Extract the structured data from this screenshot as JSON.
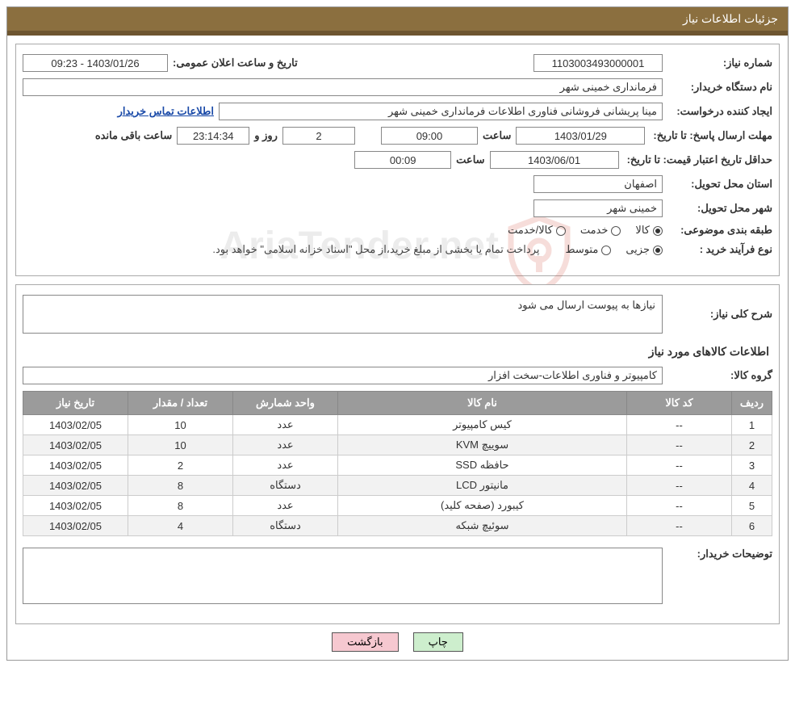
{
  "title_bar": "جزئیات اطلاعات نیاز",
  "watermark_text": "AriaTender.net",
  "section1": {
    "need_number_label": "شماره نیاز:",
    "need_number": "1103003493000001",
    "announce_label": "تاریخ و ساعت اعلان عمومی:",
    "announce_value": "1403/01/26 - 09:23",
    "buyer_org_label": "نام دستگاه خریدار:",
    "buyer_org": "فرمانداری خمینی شهر",
    "requester_label": "ایجاد کننده درخواست:",
    "requester": "مینا پریشانی فروشانی فناوری اطلاعات فرمانداری خمینی شهر",
    "buyer_contact_link": "اطلاعات تماس خریدار",
    "deadline_label": "مهلت ارسال پاسخ: تا تاریخ:",
    "deadline_date": "1403/01/29",
    "time_label": "ساعت",
    "deadline_time": "09:00",
    "days_remaining": "2",
    "day_and_label": "روز و",
    "countdown": "23:14:34",
    "remaining_label": "ساعت باقی مانده",
    "min_validity_label": "حداقل تاریخ اعتبار قیمت: تا تاریخ:",
    "min_validity_date": "1403/06/01",
    "min_validity_time": "00:09",
    "delivery_province_label": "استان محل تحویل:",
    "delivery_province": "اصفهان",
    "delivery_city_label": "شهر محل تحویل:",
    "delivery_city": "خمینی شهر",
    "subject_class_label": "طبقه بندی موضوعی:",
    "subject_goods": "کالا",
    "subject_service": "خدمت",
    "subject_goods_service": "کالا/خدمت",
    "purchase_type_label": "نوع فرآیند خرید :",
    "purchase_partial": "جزیی",
    "purchase_medium": "متوسط",
    "purchase_note": "پرداخت تمام یا بخشی از مبلغ خرید،از محل \"اسناد خزانه اسلامی\" خواهد بود."
  },
  "section2": {
    "general_desc_label": "شرح کلی نیاز:",
    "general_desc": "نیازها به پیوست ارسال می شود",
    "items_heading": "اطلاعات کالاهای مورد نیاز",
    "goods_group_label": "گروه کالا:",
    "goods_group": "کامپیوتر و فناوری اطلاعات-سخت افزار",
    "buyer_notes_label": "توضیحات خریدار:",
    "buyer_notes": ""
  },
  "table": {
    "headers": {
      "row": "ردیف",
      "code": "کد کالا",
      "name": "نام کالا",
      "unit": "واحد شمارش",
      "qty": "تعداد / مقدار",
      "date": "تاریخ نیاز"
    },
    "rows": [
      {
        "idx": "1",
        "code": "--",
        "name": "کیس کامپیوتر",
        "unit": "عدد",
        "qty": "10",
        "date": "1403/02/05"
      },
      {
        "idx": "2",
        "code": "--",
        "name": "سوییچ KVM",
        "unit": "عدد",
        "qty": "10",
        "date": "1403/02/05"
      },
      {
        "idx": "3",
        "code": "--",
        "name": "حافظه SSD",
        "unit": "عدد",
        "qty": "2",
        "date": "1403/02/05"
      },
      {
        "idx": "4",
        "code": "--",
        "name": "مانیتور LCD",
        "unit": "دستگاه",
        "qty": "8",
        "date": "1403/02/05"
      },
      {
        "idx": "5",
        "code": "--",
        "name": "کیبورد (صفحه کلید)",
        "unit": "عدد",
        "qty": "8",
        "date": "1403/02/05"
      },
      {
        "idx": "6",
        "code": "--",
        "name": "سوئیچ شبکه",
        "unit": "دستگاه",
        "qty": "4",
        "date": "1403/02/05"
      }
    ]
  },
  "buttons": {
    "print": "چاپ",
    "back": "بازگشت"
  },
  "colors": {
    "title_bg": "#8b6f3f",
    "title_border": "#6d5530",
    "th_bg": "#9b9b9b",
    "btn_print_bg": "#cdeecd",
    "btn_back_bg": "#f6c8d0",
    "link_color": "#1a4aa8",
    "watermark_shield": "#d04a3a"
  }
}
